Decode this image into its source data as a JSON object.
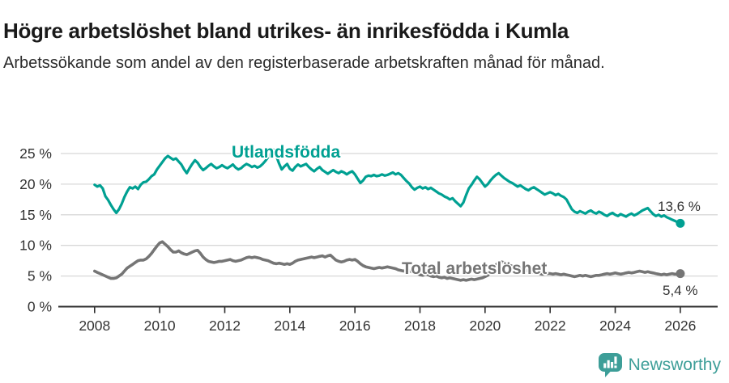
{
  "header": {
    "title": "Högre arbetslöshet bland utrikes- än inrikesfödda i Kumla",
    "subtitle": "Arbetssökande som andel av den registerbaserade arbetskraften månad för månad."
  },
  "colors": {
    "accent_teal": "#00a092",
    "line_gray": "#757575",
    "grid": "#d8d8d8",
    "axis": "#2e2e2e",
    "axis_text": "#333333",
    "logo_teal": "#3d9e98"
  },
  "chart_data": {
    "type": "line",
    "title": "Högre arbetslöshet bland utrikes- än inrikesfödda i Kumla",
    "xlabel": "",
    "ylabel": "",
    "unit": "%",
    "grid": "horizontal",
    "legend_position": "inline-labels",
    "x_start_year": 2008,
    "x_step_years": 0.08333,
    "x_tick_labels": [
      "2008",
      "2010",
      "2012",
      "2014",
      "2016",
      "2018",
      "2020",
      "2022",
      "2024",
      "2026"
    ],
    "y_tick_values": [
      0,
      5,
      10,
      15,
      20,
      25
    ],
    "y_tick_labels": [
      "0 %",
      "5 %",
      "10 %",
      "15 %",
      "20 %",
      "25 %"
    ],
    "ylim": [
      0,
      25
    ],
    "xlim": [
      2008,
      2026
    ],
    "series": [
      {
        "name": "Utlandsfödda",
        "color": "#00a092",
        "end_label": "13,6 %",
        "end_value": 13.6,
        "values": [
          19.9,
          19.6,
          19.8,
          19.3,
          18.0,
          17.4,
          16.6,
          15.9,
          15.3,
          15.9,
          16.8,
          17.9,
          18.8,
          19.5,
          19.3,
          19.6,
          19.2,
          19.9,
          20.3,
          20.4,
          20.8,
          21.3,
          21.6,
          22.4,
          23.0,
          23.6,
          24.2,
          24.6,
          24.3,
          24.0,
          24.2,
          23.7,
          23.2,
          22.4,
          21.8,
          22.6,
          23.3,
          23.9,
          23.5,
          22.8,
          22.3,
          22.6,
          23.0,
          23.3,
          22.9,
          22.6,
          22.8,
          23.1,
          22.8,
          22.6,
          22.9,
          23.2,
          22.7,
          22.4,
          22.6,
          23.0,
          23.3,
          23.1,
          22.8,
          23.0,
          22.7,
          22.9,
          23.3,
          23.8,
          24.4,
          25.1,
          25.6,
          24.6,
          23.4,
          22.4,
          22.9,
          23.3,
          22.5,
          22.2,
          22.8,
          23.2,
          22.9,
          23.1,
          23.3,
          22.8,
          22.4,
          22.1,
          22.5,
          22.8,
          22.3,
          22.0,
          21.7,
          22.0,
          22.3,
          22.0,
          21.8,
          22.1,
          21.9,
          21.6,
          21.9,
          22.1,
          21.6,
          20.9,
          20.2,
          20.6,
          21.2,
          21.4,
          21.3,
          21.5,
          21.3,
          21.4,
          21.6,
          21.4,
          21.5,
          21.7,
          21.9,
          21.6,
          21.8,
          21.5,
          21.0,
          20.5,
          20.1,
          19.5,
          19.1,
          19.4,
          19.6,
          19.3,
          19.5,
          19.2,
          19.4,
          19.1,
          18.8,
          18.5,
          18.3,
          18.0,
          17.8,
          17.5,
          17.7,
          17.2,
          16.8,
          16.4,
          17.0,
          18.2,
          19.3,
          19.9,
          20.6,
          21.2,
          20.8,
          20.2,
          19.6,
          20.0,
          20.6,
          21.1,
          21.5,
          21.8,
          21.4,
          21.0,
          20.7,
          20.4,
          20.2,
          19.9,
          19.6,
          19.8,
          19.5,
          19.2,
          19.0,
          19.3,
          19.5,
          19.2,
          18.9,
          18.6,
          18.3,
          18.5,
          18.7,
          18.5,
          18.2,
          18.4,
          18.1,
          17.9,
          17.5,
          16.7,
          15.9,
          15.5,
          15.3,
          15.6,
          15.4,
          15.2,
          15.5,
          15.7,
          15.4,
          15.2,
          15.5,
          15.3,
          15.0,
          14.8,
          15.1,
          15.3,
          15.0,
          14.8,
          15.1,
          14.9,
          14.7,
          15.0,
          15.2,
          14.9,
          15.1,
          15.4,
          15.7,
          15.9,
          16.1,
          15.6,
          15.1,
          14.8,
          15.0,
          14.7,
          14.9,
          14.6,
          14.4,
          14.2,
          14.0,
          13.8,
          13.6
        ]
      },
      {
        "name": "Total arbetslöshet",
        "color": "#757575",
        "end_label": "5,4 %",
        "end_value": 5.4,
        "values": [
          5.8,
          5.6,
          5.4,
          5.2,
          5.0,
          4.8,
          4.6,
          4.6,
          4.7,
          5.0,
          5.3,
          5.8,
          6.3,
          6.6,
          6.9,
          7.2,
          7.5,
          7.6,
          7.6,
          7.8,
          8.2,
          8.7,
          9.3,
          9.9,
          10.4,
          10.6,
          10.2,
          9.8,
          9.3,
          8.9,
          8.9,
          9.1,
          8.8,
          8.6,
          8.5,
          8.7,
          8.9,
          9.1,
          9.2,
          8.7,
          8.1,
          7.7,
          7.4,
          7.3,
          7.2,
          7.3,
          7.4,
          7.4,
          7.5,
          7.6,
          7.7,
          7.5,
          7.4,
          7.5,
          7.6,
          7.8,
          8.0,
          8.1,
          8.0,
          8.1,
          8.0,
          7.9,
          7.7,
          7.6,
          7.5,
          7.3,
          7.1,
          7.0,
          7.1,
          7.0,
          6.9,
          7.0,
          6.9,
          7.1,
          7.4,
          7.6,
          7.7,
          7.8,
          7.9,
          8.0,
          8.1,
          8.0,
          8.1,
          8.2,
          8.3,
          8.1,
          8.3,
          8.4,
          8.0,
          7.6,
          7.4,
          7.3,
          7.4,
          7.6,
          7.7,
          7.6,
          7.7,
          7.4,
          7.0,
          6.7,
          6.5,
          6.4,
          6.3,
          6.2,
          6.3,
          6.4,
          6.3,
          6.4,
          6.5,
          6.4,
          6.3,
          6.2,
          6.0,
          5.9,
          5.8,
          6.0,
          5.9,
          5.7,
          5.5,
          5.4,
          5.2,
          5.1,
          5.3,
          5.2,
          5.0,
          4.9,
          5.0,
          4.8,
          4.7,
          4.8,
          4.6,
          4.7,
          4.6,
          4.5,
          4.4,
          4.3,
          4.4,
          4.3,
          4.4,
          4.5,
          4.4,
          4.5,
          4.6,
          4.7,
          4.9,
          5.1,
          5.6,
          6.2,
          6.8,
          7.2,
          7.3,
          7.2,
          7.0,
          6.8,
          6.6,
          6.4,
          6.2,
          6.1,
          6.0,
          5.9,
          5.8,
          5.7,
          5.6,
          5.5,
          5.4,
          5.3,
          5.3,
          5.4,
          5.4,
          5.3,
          5.4,
          5.3,
          5.2,
          5.3,
          5.2,
          5.1,
          5.0,
          4.9,
          5.0,
          5.1,
          5.0,
          5.1,
          5.0,
          4.9,
          5.0,
          5.1,
          5.1,
          5.2,
          5.3,
          5.4,
          5.3,
          5.4,
          5.5,
          5.4,
          5.3,
          5.4,
          5.5,
          5.6,
          5.5,
          5.6,
          5.7,
          5.8,
          5.7,
          5.6,
          5.7,
          5.6,
          5.5,
          5.4,
          5.3,
          5.2,
          5.3,
          5.2,
          5.3,
          5.4,
          5.3,
          5.3,
          5.4
        ]
      }
    ]
  },
  "footer": {
    "brand": "Newsworthy"
  }
}
